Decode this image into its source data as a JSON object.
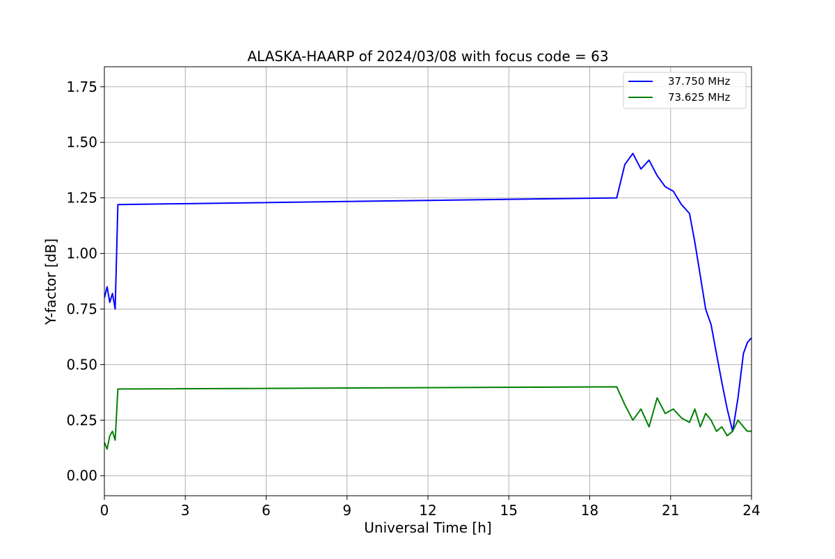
{
  "chart_data": {
    "type": "line",
    "title": "ALASKA-HAARP of 2024/03/08 with focus code = 63",
    "xlabel": "Universal Time [h]",
    "ylabel": "Y-factor [dB]",
    "xlim": [
      0,
      24
    ],
    "ylim": [
      -0.09,
      1.84
    ],
    "x_ticks": [
      0,
      3,
      6,
      9,
      12,
      15,
      18,
      21,
      24
    ],
    "x_tick_labels": [
      "0",
      "3",
      "6",
      "9",
      "12",
      "15",
      "18",
      "21",
      "24"
    ],
    "y_ticks": [
      0.0,
      0.25,
      0.5,
      0.75,
      1.0,
      1.25,
      1.5,
      1.75
    ],
    "y_tick_labels": [
      "0.00",
      "0.25",
      "0.50",
      "0.75",
      "1.00",
      "1.25",
      "1.50",
      "1.75"
    ],
    "grid": true,
    "legend_position": "top-right",
    "series": [
      {
        "name": "37.750 MHz",
        "color": "#0000ff",
        "x": [
          0.0,
          0.1,
          0.2,
          0.3,
          0.4,
          0.5,
          19.0,
          19.3,
          19.6,
          19.9,
          20.2,
          20.5,
          20.8,
          21.1,
          21.4,
          21.7,
          21.9,
          22.1,
          22.3,
          22.5,
          22.7,
          22.9,
          23.1,
          23.3,
          23.5,
          23.7,
          23.85,
          24.0
        ],
        "values": [
          0.8,
          0.85,
          0.78,
          0.82,
          0.75,
          1.22,
          1.25,
          1.4,
          1.45,
          1.38,
          1.42,
          1.35,
          1.3,
          1.28,
          1.22,
          1.18,
          1.05,
          0.9,
          0.75,
          0.68,
          0.55,
          0.42,
          0.3,
          0.2,
          0.35,
          0.55,
          0.6,
          0.62
        ]
      },
      {
        "name": "73.625 MHz",
        "color": "#008000",
        "x": [
          0.0,
          0.1,
          0.2,
          0.3,
          0.4,
          0.5,
          19.0,
          19.3,
          19.6,
          19.9,
          20.2,
          20.5,
          20.8,
          21.1,
          21.4,
          21.7,
          21.9,
          22.1,
          22.3,
          22.5,
          22.7,
          22.9,
          23.1,
          23.3,
          23.5,
          23.7,
          23.85,
          24.0
        ],
        "values": [
          0.15,
          0.12,
          0.18,
          0.2,
          0.16,
          0.39,
          0.4,
          0.32,
          0.25,
          0.3,
          0.22,
          0.35,
          0.28,
          0.3,
          0.26,
          0.24,
          0.3,
          0.22,
          0.28,
          0.25,
          0.2,
          0.22,
          0.18,
          0.2,
          0.25,
          0.22,
          0.2,
          0.2
        ]
      }
    ]
  }
}
